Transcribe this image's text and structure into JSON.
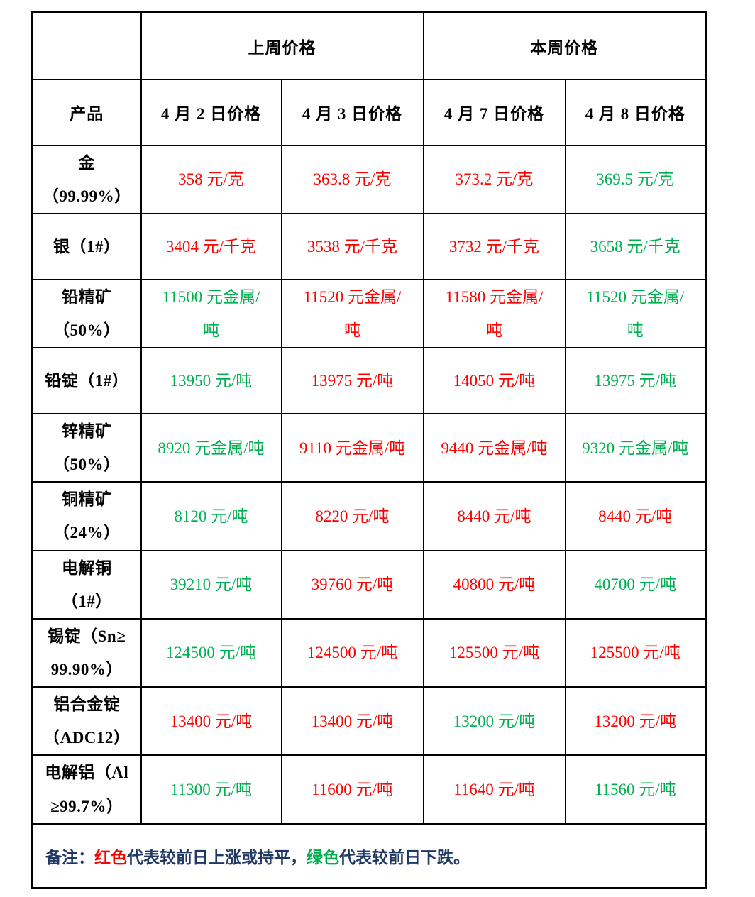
{
  "colors": {
    "price_up_or_flat": "#fe0000",
    "price_down": "#00b050",
    "note_text": "#1f3864",
    "border": "#000000",
    "background": "#ffffff"
  },
  "table": {
    "header": {
      "corner": "",
      "last_week": "上周价格",
      "this_week": "本周价格",
      "product": "产品",
      "dates": [
        "4 月 2 日价格",
        "4 月 3 日价格",
        "4 月 7 日价格",
        "4 月 8 日价格"
      ]
    },
    "rows": [
      {
        "product": "金\n（99.99%）",
        "prices": [
          {
            "text": "358 元/克",
            "color": "red"
          },
          {
            "text": "363.8 元/克",
            "color": "red"
          },
          {
            "text": "373.2 元/克",
            "color": "red"
          },
          {
            "text": "369.5 元/克",
            "color": "green"
          }
        ]
      },
      {
        "product": "银（1#）",
        "prices": [
          {
            "text": "3404 元/千克",
            "color": "red"
          },
          {
            "text": "3538 元/千克",
            "color": "red"
          },
          {
            "text": "3732 元/千克",
            "color": "red"
          },
          {
            "text": "3658 元/千克",
            "color": "green"
          }
        ]
      },
      {
        "product": "铅精矿\n（50%）",
        "prices": [
          {
            "text": "11500 元金属/\n吨",
            "color": "green"
          },
          {
            "text": "11520 元金属/\n吨",
            "color": "red"
          },
          {
            "text": "11580 元金属/\n吨",
            "color": "red"
          },
          {
            "text": "11520 元金属/\n吨",
            "color": "green"
          }
        ]
      },
      {
        "product": "铅锭（1#）",
        "prices": [
          {
            "text": "13950 元/吨",
            "color": "green"
          },
          {
            "text": "13975 元/吨",
            "color": "red"
          },
          {
            "text": "14050 元/吨",
            "color": "red"
          },
          {
            "text": "13975 元/吨",
            "color": "green"
          }
        ]
      },
      {
        "product": "锌精矿\n（50%）",
        "prices": [
          {
            "text": "8920 元金属/吨",
            "color": "green"
          },
          {
            "text": "9110 元金属/吨",
            "color": "red"
          },
          {
            "text": "9440 元金属/吨",
            "color": "red"
          },
          {
            "text": "9320 元金属/吨",
            "color": "green"
          }
        ]
      },
      {
        "product": "铜精矿\n（24%）",
        "prices": [
          {
            "text": "8120 元/吨",
            "color": "green"
          },
          {
            "text": "8220 元/吨",
            "color": "red"
          },
          {
            "text": "8440 元/吨",
            "color": "red"
          },
          {
            "text": "8440 元/吨",
            "color": "red"
          }
        ]
      },
      {
        "product": "电解铜\n（1#）",
        "prices": [
          {
            "text": "39210 元/吨",
            "color": "green"
          },
          {
            "text": "39760 元/吨",
            "color": "red"
          },
          {
            "text": "40800 元/吨",
            "color": "red"
          },
          {
            "text": "40700 元/吨",
            "color": "green"
          }
        ]
      },
      {
        "product": "锡锭（Sn≥\n99.90%）",
        "prices": [
          {
            "text": "124500 元/吨",
            "color": "green"
          },
          {
            "text": "124500 元/吨",
            "color": "red"
          },
          {
            "text": "125500 元/吨",
            "color": "red"
          },
          {
            "text": "125500 元/吨",
            "color": "red"
          }
        ]
      },
      {
        "product": "铝合金锭\n（ADC12）",
        "prices": [
          {
            "text": "13400 元/吨",
            "color": "red"
          },
          {
            "text": "13400 元/吨",
            "color": "red"
          },
          {
            "text": "13200 元/吨",
            "color": "green"
          },
          {
            "text": "13200 元/吨",
            "color": "red"
          }
        ]
      },
      {
        "product": "电解铝（Al\n≥99.7%）",
        "prices": [
          {
            "text": "11300 元/吨",
            "color": "green"
          },
          {
            "text": "11600 元/吨",
            "color": "red"
          },
          {
            "text": "11640 元/吨",
            "color": "red"
          },
          {
            "text": "11560 元/吨",
            "color": "green"
          }
        ]
      }
    ],
    "note": {
      "segments": [
        {
          "text": "备注：",
          "color": "navy"
        },
        {
          "text": "红色",
          "color": "red"
        },
        {
          "text": "代表较前日上涨或持平，",
          "color": "navy"
        },
        {
          "text": "绿色",
          "color": "green"
        },
        {
          "text": "代表较前日下跌。",
          "color": "navy"
        }
      ]
    }
  }
}
